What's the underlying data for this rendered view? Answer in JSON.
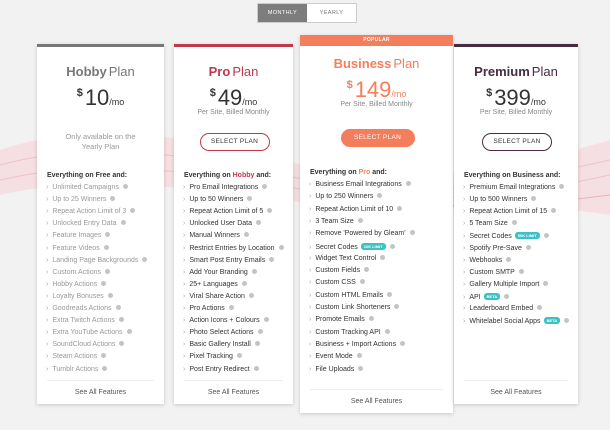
{
  "toggle": {
    "options": [
      "MONTHLY",
      "YEARLY"
    ],
    "active": 0
  },
  "plans": [
    {
      "name": "Hobby",
      "suffix": "Plan",
      "color": "#777777",
      "currency": "$",
      "price": 10,
      "period": "/mo",
      "note": "Only available on the Yearly Plan",
      "heading": "Everything on Free and:",
      "features": [
        {
          "text": "Unlimited Campaigns"
        },
        {
          "text": "Up to 25 Winners"
        },
        {
          "text": "Repeat Action Limit of 3"
        },
        {
          "text": "Unlocked Entry Data"
        },
        {
          "text": "Feature Images"
        },
        {
          "text": "Feature Videos"
        },
        {
          "text": "Landing Page Backgrounds"
        },
        {
          "text": "Custom Actions"
        },
        {
          "text": "Hobby Actions"
        },
        {
          "text": "Loyalty Bonuses"
        },
        {
          "text": "Goodreads Actions"
        },
        {
          "text": "Extra Twitch Actions"
        },
        {
          "text": "Extra YouTube Actions"
        },
        {
          "text": "SoundCloud Actions"
        },
        {
          "text": "Steam Actions"
        },
        {
          "text": "Tumblr Actions"
        }
      ],
      "footer": "See All Features"
    },
    {
      "name": "Pro",
      "suffix": "Plan",
      "color": "#c0394a",
      "currency": "$",
      "price": 49,
      "period": "/mo",
      "note": "Per Site, Billed Monthly",
      "button": "SELECT PLAN",
      "heading": {
        "before": "Everything on ",
        "highlight": "Hobby",
        "after": " and:"
      },
      "features": [
        {
          "text": "Pro Email Integrations"
        },
        {
          "text": "Up to 50 Winners"
        },
        {
          "text": "Repeat Action Limit of 5"
        },
        {
          "text": "Unlocked User Data"
        },
        {
          "text": "Manual Winners"
        },
        {
          "text": "Restrict Entries by Location"
        },
        {
          "text": "Smart Post Entry Emails"
        },
        {
          "text": "Add Your Branding"
        },
        {
          "text": "25+ Languages"
        },
        {
          "text": "Viral Share Action"
        },
        {
          "text": "Pro Actions"
        },
        {
          "text": "Action Icons + Colours"
        },
        {
          "text": "Photo Select Actions"
        },
        {
          "text": "Basic Gallery Install"
        },
        {
          "text": "Pixel Tracking"
        },
        {
          "text": "Post Entry Redirect"
        }
      ],
      "footer": "See All Features"
    },
    {
      "name": "Business",
      "suffix": "Plan",
      "color": "#f47e5c",
      "badge": "POPULAR",
      "currency": "$",
      "price": 149,
      "period": "/mo",
      "note": "Per Site, Billed Monthly",
      "button": "SELECT PLAN",
      "heading": {
        "before": "Everything on ",
        "highlight": "Pro",
        "after": " and:"
      },
      "features": [
        {
          "text": "Business Email Integrations"
        },
        {
          "text": "Up to 250 Winners"
        },
        {
          "text": "Repeat Action Limit of 10"
        },
        {
          "text": "3 Team Size"
        },
        {
          "text": "Remove 'Powered by Gleam'"
        },
        {
          "text": "Secret Codes",
          "tag": "10K LIMIT"
        },
        {
          "text": "Widget Text Control"
        },
        {
          "text": "Custom Fields"
        },
        {
          "text": "Custom CSS"
        },
        {
          "text": "Custom HTML Emails"
        },
        {
          "text": "Custom Link Shorteners"
        },
        {
          "text": "Promote Emails"
        },
        {
          "text": "Custom Tracking API"
        },
        {
          "text": "Business + Import Actions"
        },
        {
          "text": "Event Mode"
        },
        {
          "text": "File Uploads"
        }
      ],
      "footer": "See All Features"
    },
    {
      "name": "Premium",
      "suffix": "Plan",
      "color": "#4b2a3f",
      "currency": "$",
      "price": 399,
      "period": "/mo",
      "note": "Per Site, Billed Monthly",
      "button": "SELECT PLAN",
      "heading": "Everything on Business and:",
      "features": [
        {
          "text": "Premium Email Integrations"
        },
        {
          "text": "Up to 500 Winners"
        },
        {
          "text": "Repeat Action Limit of 15"
        },
        {
          "text": "5 Team Size"
        },
        {
          "text": "Secret Codes",
          "tag": "50K LIMIT"
        },
        {
          "text": "Spotify Pre-Save"
        },
        {
          "text": "Webhooks"
        },
        {
          "text": "Custom SMTP"
        },
        {
          "text": "Gallery Multiple Import"
        },
        {
          "text": "API",
          "tag": "BETA"
        },
        {
          "text": "Leaderboard Embed"
        },
        {
          "text": "Whitelabel Social Apps",
          "tag": "BETA"
        }
      ],
      "footer": "See All Features"
    }
  ]
}
